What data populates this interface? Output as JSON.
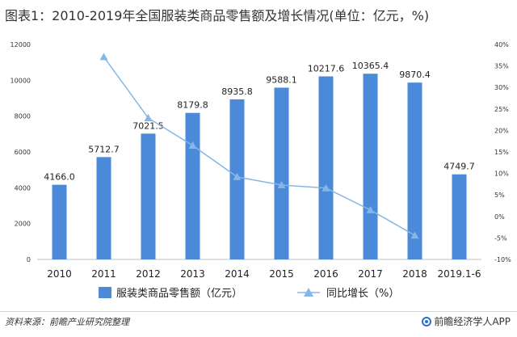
{
  "title": "图表1：2010-2019年全国服装类商品零售额及增长情况(单位：亿元，%)",
  "chart_data": {
    "type": "bar+line",
    "categories": [
      "2010",
      "2011",
      "2012",
      "2013",
      "2014",
      "2015",
      "2016",
      "2017",
      "2018",
      "2019.1-6"
    ],
    "series": [
      {
        "name": "服装类商品零售额（亿元）",
        "type": "bar",
        "axis": "left",
        "values": [
          4166.0,
          5712.7,
          7021.5,
          8179.8,
          8935.8,
          9588.1,
          10217.6,
          10365.4,
          9870.4,
          4749.7
        ],
        "labels": [
          "4166.0",
          "5712.7",
          "7021.5",
          "8179.8",
          "8935.8",
          "9588.1",
          "10217.6",
          "10365.4",
          "9870.4",
          "4749.7"
        ],
        "color": "#4a8ad8"
      },
      {
        "name": "同比增长（%）",
        "type": "line",
        "axis": "right",
        "marker": "triangle",
        "values": [
          null,
          37.1,
          22.9,
          16.5,
          9.2,
          7.3,
          6.6,
          1.5,
          -4.4,
          null
        ],
        "color": "#86b6e8"
      }
    ],
    "y_left": {
      "range": [
        0,
        12000
      ],
      "ticks": [
        0,
        2000,
        4000,
        6000,
        8000,
        10000,
        12000
      ],
      "tick_labels": [
        "0",
        "2000",
        "4000",
        "6000",
        "8000",
        "10000",
        "12000"
      ]
    },
    "y_right": {
      "range": [
        -10,
        40
      ],
      "ticks": [
        -10,
        -5,
        0,
        5,
        10,
        15,
        20,
        25,
        30,
        35,
        40
      ],
      "tick_labels": [
        "-10%",
        "-5%",
        "0%",
        "5%",
        "10%",
        "15%",
        "20%",
        "25%",
        "30%",
        "35%",
        "40%"
      ]
    },
    "legend_position": "bottom-center",
    "grid": false
  },
  "source": "资料来源：前瞻产业研究院整理",
  "brand": "前瞻经济学人APP"
}
